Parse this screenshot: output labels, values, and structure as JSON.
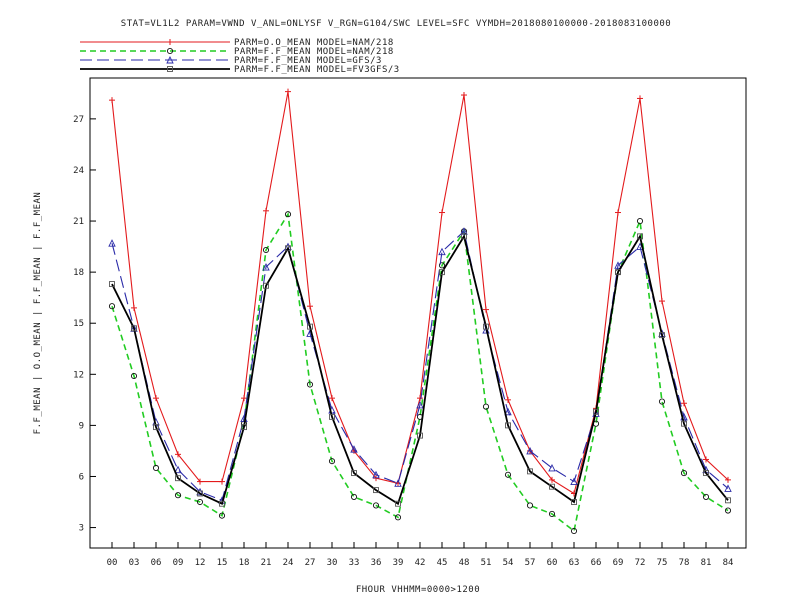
{
  "chart_data": {
    "type": "line",
    "title": "STAT=VL1L2 PARAM=VWND V_ANL=ONLYSF V_RGN=G104/SWC LEVEL=SFC VYMDH=2018080100000-2018083100000",
    "xlabel": "FHOUR VHHMM=0000>1200",
    "ylabel": "F.F_MEAN | O.O_MEAN | F.F_MEAN | F.F_MEAN",
    "categories": [
      "00",
      "03",
      "06",
      "09",
      "12",
      "15",
      "18",
      "21",
      "24",
      "27",
      "30",
      "33",
      "36",
      "39",
      "42",
      "45",
      "48",
      "51",
      "54",
      "57",
      "60",
      "63",
      "66",
      "69",
      "72",
      "75",
      "78",
      "81",
      "84"
    ],
    "yticks": [
      3,
      6,
      9,
      12,
      15,
      18,
      21,
      24,
      27
    ],
    "ylim": [
      1.8,
      29.4
    ],
    "legend_position": "top-left",
    "grid": false,
    "series": [
      {
        "name": "PARM=O.O_MEAN MODEL=NAM/218",
        "color": "#e31a1c",
        "dash": "solid",
        "marker": "plus",
        "values": [
          28.1,
          15.9,
          10.6,
          7.3,
          5.7,
          5.7,
          10.6,
          21.6,
          28.6,
          16.0,
          10.6,
          7.5,
          5.9,
          5.6,
          10.6,
          21.5,
          28.4,
          15.8,
          10.5,
          7.5,
          5.8,
          5.0,
          10.0,
          21.5,
          28.2,
          16.3,
          10.3,
          7.0,
          5.8
        ]
      },
      {
        "name": "PARM=F.F_MEAN MODEL=NAM/218",
        "color": "#22cc22",
        "dash": "dashed",
        "marker": "diamond",
        "values": [
          16.0,
          11.9,
          6.5,
          4.9,
          4.5,
          3.7,
          9.1,
          19.3,
          21.4,
          11.4,
          6.9,
          4.8,
          4.3,
          3.6,
          9.5,
          18.4,
          20.4,
          10.1,
          6.1,
          4.3,
          3.8,
          2.8,
          9.1,
          18.0,
          21.0,
          10.4,
          6.2,
          4.8,
          4.0
        ]
      },
      {
        "name": "PARM=F.F_MEAN MODEL=GFS/3",
        "color": "#2a2aa8",
        "dash": "longdash",
        "marker": "triangle",
        "values": [
          19.7,
          14.7,
          9.2,
          6.4,
          5.1,
          4.6,
          9.4,
          18.3,
          19.5,
          14.4,
          9.9,
          7.6,
          6.1,
          5.6,
          10.2,
          19.2,
          20.4,
          14.6,
          9.8,
          7.5,
          6.5,
          5.7,
          9.7,
          18.4,
          19.5,
          14.4,
          9.5,
          6.4,
          5.3
        ]
      },
      {
        "name": "PARM=F.F_MEAN MODEL=FV3GFS/3",
        "color": "#000000",
        "dash": "solid",
        "marker": "square",
        "values": [
          17.3,
          14.7,
          8.9,
          5.9,
          5.0,
          4.4,
          8.9,
          17.2,
          19.4,
          14.8,
          9.5,
          6.2,
          5.2,
          4.4,
          8.4,
          18.0,
          20.1,
          14.8,
          9.0,
          6.3,
          5.4,
          4.5,
          9.8,
          18.0,
          20.1,
          14.3,
          9.1,
          6.2,
          4.6
        ]
      }
    ]
  }
}
